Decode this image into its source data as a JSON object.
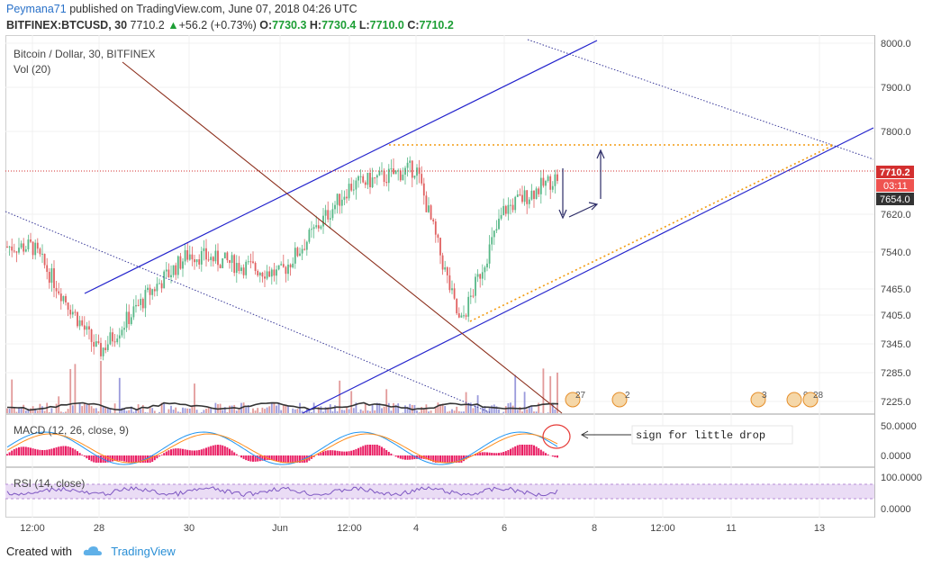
{
  "header": {
    "publisher": "Peymana71",
    "published_text": "published on TradingView.com, June 07, 2018 04:26 UTC",
    "symbol": "BITFINEX:BTCUSD, 30",
    "last": "7710.2",
    "change": "+56.2 (+0.73%)",
    "o_label": "O:",
    "o_value": "7730.3",
    "h_label": "H:",
    "h_value": "7730.4",
    "l_label": "L:",
    "l_value": "7710.0",
    "c_label": "C:",
    "c_value": "7710.2"
  },
  "legend": {
    "title": "Bitcoin / Dollar, 30, BITFINEX",
    "volume": "Vol (20)",
    "macd": "MACD (12, 26, close, 9)",
    "rsi": "RSI (14, close)"
  },
  "annotation": {
    "text": "sign for little drop"
  },
  "price_badges": {
    "last": "7710.2",
    "countdown": "03:11",
    "level": "7654.0"
  },
  "event_badges": [
    "27",
    "2",
    "3",
    "9",
    "28"
  ],
  "footer": {
    "created_with": "Created with",
    "brand": "TradingView"
  },
  "colors": {
    "up": "#56b786",
    "down": "#e06060",
    "accent_blue": "#2222cc",
    "trend_brown": "#8b2d1a",
    "macd_line": "#2196f3",
    "signal_line": "#ff8c1a",
    "hist": "#e91e63",
    "rsi_line": "#7e57c2",
    "rsi_band": "#eadcf5",
    "orange_dotted": "#f39c12",
    "last_price": "#d32f2f"
  },
  "chart_data": {
    "type": "line",
    "title": "Bitcoin / Dollar, 30, BITFINEX",
    "x_tick_labels": [
      "12:00",
      "28",
      "30",
      "Jun",
      "12:00",
      "4",
      "6",
      "8",
      "12:00",
      "11",
      "13"
    ],
    "y_tick_labels": [
      "8000.0",
      "7900.0",
      "7800.0",
      "7620.0",
      "7540.0",
      "7465.0",
      "7405.0",
      "7345.0",
      "7285.0",
      "7225.0"
    ],
    "macd_tick_labels": [
      "50.0000",
      "0.0000"
    ],
    "rsi_tick_labels": [
      "100.0000",
      "0.0000"
    ],
    "ylim": [
      7190,
      8010
    ],
    "price_path": {
      "x": [
        "12:00",
        "28",
        "29",
        "30",
        "Jun",
        "12:00",
        "4",
        "5",
        "6",
        "6 12:00"
      ],
      "values": [
        7560,
        7330,
        7460,
        7545,
        7500,
        7690,
        7730,
        7390,
        7640,
        7710
      ]
    },
    "last_price": 7710.2,
    "annotation": "sign for little drop"
  }
}
